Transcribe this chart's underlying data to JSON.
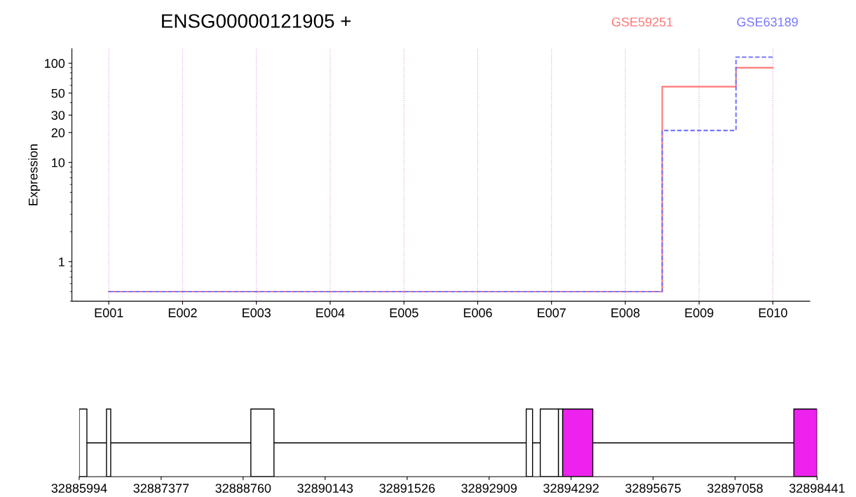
{
  "chart_data": [
    {
      "type": "step",
      "title": "ENSG00000121905 +",
      "ylabel": "Expression",
      "categories": [
        "E001",
        "E002",
        "E003",
        "E004",
        "E005",
        "E006",
        "E007",
        "E008",
        "E009",
        "E010"
      ],
      "series": [
        {
          "name": "GSE59251",
          "color": "#ff7777",
          "values": [
            0.5,
            0.5,
            0.5,
            0.5,
            0.5,
            0.5,
            0.5,
            0.5,
            58,
            90
          ]
        },
        {
          "name": "GSE63189",
          "color": "#7777ff",
          "line_style": "dashed",
          "values": [
            0.5,
            0.5,
            0.5,
            0.5,
            0.5,
            0.5,
            0.5,
            0.5,
            21,
            115
          ]
        }
      ],
      "log": "y",
      "ylim": [
        0.4,
        140
      ],
      "yticks": [
        1,
        10,
        20,
        30,
        50,
        100
      ],
      "grid": "x",
      "legend": "top right"
    },
    {
      "type": "bar",
      "orientation": "horizontal",
      "categories": [
        null
      ],
      "series": [
        {
          "color": "#ffffff",
          "base": [
            32885994
          ],
          "values": [
            130
          ]
        },
        {
          "color": "#ffffff",
          "base": [
            32886455
          ],
          "values": [
            71
          ]
        },
        {
          "color": "#ffffff",
          "base": [
            32888890
          ],
          "values": [
            390
          ]
        },
        {
          "color": "#ffffff",
          "base": [
            32893535
          ],
          "values": [
            107
          ]
        },
        {
          "color": "#ffffff",
          "base": [
            32893772
          ],
          "values": [
            307
          ]
        },
        {
          "color": "#ffffff",
          "base": [
            32894079
          ],
          "values": [
            71
          ]
        },
        {
          "color": "#ee22ee",
          "base": [
            32894150
          ],
          "values": [
            508
          ]
        },
        {
          "color": "#ee22ee",
          "base": [
            32898050
          ],
          "values": [
            391
          ]
        }
      ],
      "xlim": [
        32885994,
        32898441
      ],
      "xticks": [
        32885994,
        32887377,
        32888760,
        32890143,
        32891526,
        32892909,
        32894292,
        32895675,
        32897058,
        32898441
      ]
    }
  ]
}
